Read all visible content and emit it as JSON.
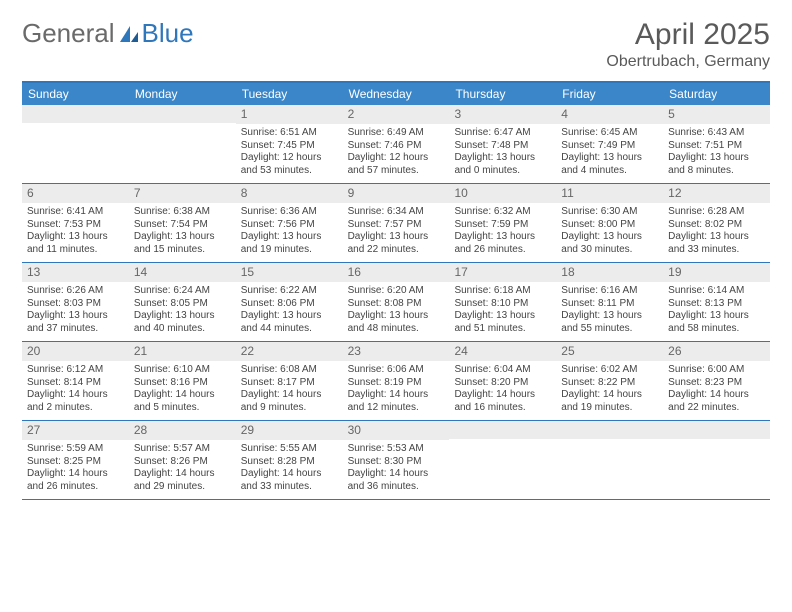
{
  "brand": {
    "part1": "General",
    "part2": "Blue"
  },
  "title": "April 2025",
  "location": "Obertrubach, Germany",
  "colors": {
    "header_bar": "#3a86c8",
    "border": "#2f77bb",
    "daynum_bg": "#ececec",
    "text": "#444444",
    "title_text": "#5a5a5a"
  },
  "fonts": {
    "title_size": 30,
    "location_size": 16,
    "dow_size": 12,
    "cell_size": 10
  },
  "dow": [
    "Sunday",
    "Monday",
    "Tuesday",
    "Wednesday",
    "Thursday",
    "Friday",
    "Saturday"
  ],
  "weeks": [
    [
      {
        "n": "",
        "sunrise": "",
        "sunset": "",
        "daylight": ""
      },
      {
        "n": "",
        "sunrise": "",
        "sunset": "",
        "daylight": ""
      },
      {
        "n": "1",
        "sunrise": "Sunrise: 6:51 AM",
        "sunset": "Sunset: 7:45 PM",
        "daylight": "Daylight: 12 hours and 53 minutes."
      },
      {
        "n": "2",
        "sunrise": "Sunrise: 6:49 AM",
        "sunset": "Sunset: 7:46 PM",
        "daylight": "Daylight: 12 hours and 57 minutes."
      },
      {
        "n": "3",
        "sunrise": "Sunrise: 6:47 AM",
        "sunset": "Sunset: 7:48 PM",
        "daylight": "Daylight: 13 hours and 0 minutes."
      },
      {
        "n": "4",
        "sunrise": "Sunrise: 6:45 AM",
        "sunset": "Sunset: 7:49 PM",
        "daylight": "Daylight: 13 hours and 4 minutes."
      },
      {
        "n": "5",
        "sunrise": "Sunrise: 6:43 AM",
        "sunset": "Sunset: 7:51 PM",
        "daylight": "Daylight: 13 hours and 8 minutes."
      }
    ],
    [
      {
        "n": "6",
        "sunrise": "Sunrise: 6:41 AM",
        "sunset": "Sunset: 7:53 PM",
        "daylight": "Daylight: 13 hours and 11 minutes."
      },
      {
        "n": "7",
        "sunrise": "Sunrise: 6:38 AM",
        "sunset": "Sunset: 7:54 PM",
        "daylight": "Daylight: 13 hours and 15 minutes."
      },
      {
        "n": "8",
        "sunrise": "Sunrise: 6:36 AM",
        "sunset": "Sunset: 7:56 PM",
        "daylight": "Daylight: 13 hours and 19 minutes."
      },
      {
        "n": "9",
        "sunrise": "Sunrise: 6:34 AM",
        "sunset": "Sunset: 7:57 PM",
        "daylight": "Daylight: 13 hours and 22 minutes."
      },
      {
        "n": "10",
        "sunrise": "Sunrise: 6:32 AM",
        "sunset": "Sunset: 7:59 PM",
        "daylight": "Daylight: 13 hours and 26 minutes."
      },
      {
        "n": "11",
        "sunrise": "Sunrise: 6:30 AM",
        "sunset": "Sunset: 8:00 PM",
        "daylight": "Daylight: 13 hours and 30 minutes."
      },
      {
        "n": "12",
        "sunrise": "Sunrise: 6:28 AM",
        "sunset": "Sunset: 8:02 PM",
        "daylight": "Daylight: 13 hours and 33 minutes."
      }
    ],
    [
      {
        "n": "13",
        "sunrise": "Sunrise: 6:26 AM",
        "sunset": "Sunset: 8:03 PM",
        "daylight": "Daylight: 13 hours and 37 minutes."
      },
      {
        "n": "14",
        "sunrise": "Sunrise: 6:24 AM",
        "sunset": "Sunset: 8:05 PM",
        "daylight": "Daylight: 13 hours and 40 minutes."
      },
      {
        "n": "15",
        "sunrise": "Sunrise: 6:22 AM",
        "sunset": "Sunset: 8:06 PM",
        "daylight": "Daylight: 13 hours and 44 minutes."
      },
      {
        "n": "16",
        "sunrise": "Sunrise: 6:20 AM",
        "sunset": "Sunset: 8:08 PM",
        "daylight": "Daylight: 13 hours and 48 minutes."
      },
      {
        "n": "17",
        "sunrise": "Sunrise: 6:18 AM",
        "sunset": "Sunset: 8:10 PM",
        "daylight": "Daylight: 13 hours and 51 minutes."
      },
      {
        "n": "18",
        "sunrise": "Sunrise: 6:16 AM",
        "sunset": "Sunset: 8:11 PM",
        "daylight": "Daylight: 13 hours and 55 minutes."
      },
      {
        "n": "19",
        "sunrise": "Sunrise: 6:14 AM",
        "sunset": "Sunset: 8:13 PM",
        "daylight": "Daylight: 13 hours and 58 minutes."
      }
    ],
    [
      {
        "n": "20",
        "sunrise": "Sunrise: 6:12 AM",
        "sunset": "Sunset: 8:14 PM",
        "daylight": "Daylight: 14 hours and 2 minutes."
      },
      {
        "n": "21",
        "sunrise": "Sunrise: 6:10 AM",
        "sunset": "Sunset: 8:16 PM",
        "daylight": "Daylight: 14 hours and 5 minutes."
      },
      {
        "n": "22",
        "sunrise": "Sunrise: 6:08 AM",
        "sunset": "Sunset: 8:17 PM",
        "daylight": "Daylight: 14 hours and 9 minutes."
      },
      {
        "n": "23",
        "sunrise": "Sunrise: 6:06 AM",
        "sunset": "Sunset: 8:19 PM",
        "daylight": "Daylight: 14 hours and 12 minutes."
      },
      {
        "n": "24",
        "sunrise": "Sunrise: 6:04 AM",
        "sunset": "Sunset: 8:20 PM",
        "daylight": "Daylight: 14 hours and 16 minutes."
      },
      {
        "n": "25",
        "sunrise": "Sunrise: 6:02 AM",
        "sunset": "Sunset: 8:22 PM",
        "daylight": "Daylight: 14 hours and 19 minutes."
      },
      {
        "n": "26",
        "sunrise": "Sunrise: 6:00 AM",
        "sunset": "Sunset: 8:23 PM",
        "daylight": "Daylight: 14 hours and 22 minutes."
      }
    ],
    [
      {
        "n": "27",
        "sunrise": "Sunrise: 5:59 AM",
        "sunset": "Sunset: 8:25 PM",
        "daylight": "Daylight: 14 hours and 26 minutes."
      },
      {
        "n": "28",
        "sunrise": "Sunrise: 5:57 AM",
        "sunset": "Sunset: 8:26 PM",
        "daylight": "Daylight: 14 hours and 29 minutes."
      },
      {
        "n": "29",
        "sunrise": "Sunrise: 5:55 AM",
        "sunset": "Sunset: 8:28 PM",
        "daylight": "Daylight: 14 hours and 33 minutes."
      },
      {
        "n": "30",
        "sunrise": "Sunrise: 5:53 AM",
        "sunset": "Sunset: 8:30 PM",
        "daylight": "Daylight: 14 hours and 36 minutes."
      },
      {
        "n": "",
        "sunrise": "",
        "sunset": "",
        "daylight": ""
      },
      {
        "n": "",
        "sunrise": "",
        "sunset": "",
        "daylight": ""
      },
      {
        "n": "",
        "sunrise": "",
        "sunset": "",
        "daylight": ""
      }
    ]
  ]
}
